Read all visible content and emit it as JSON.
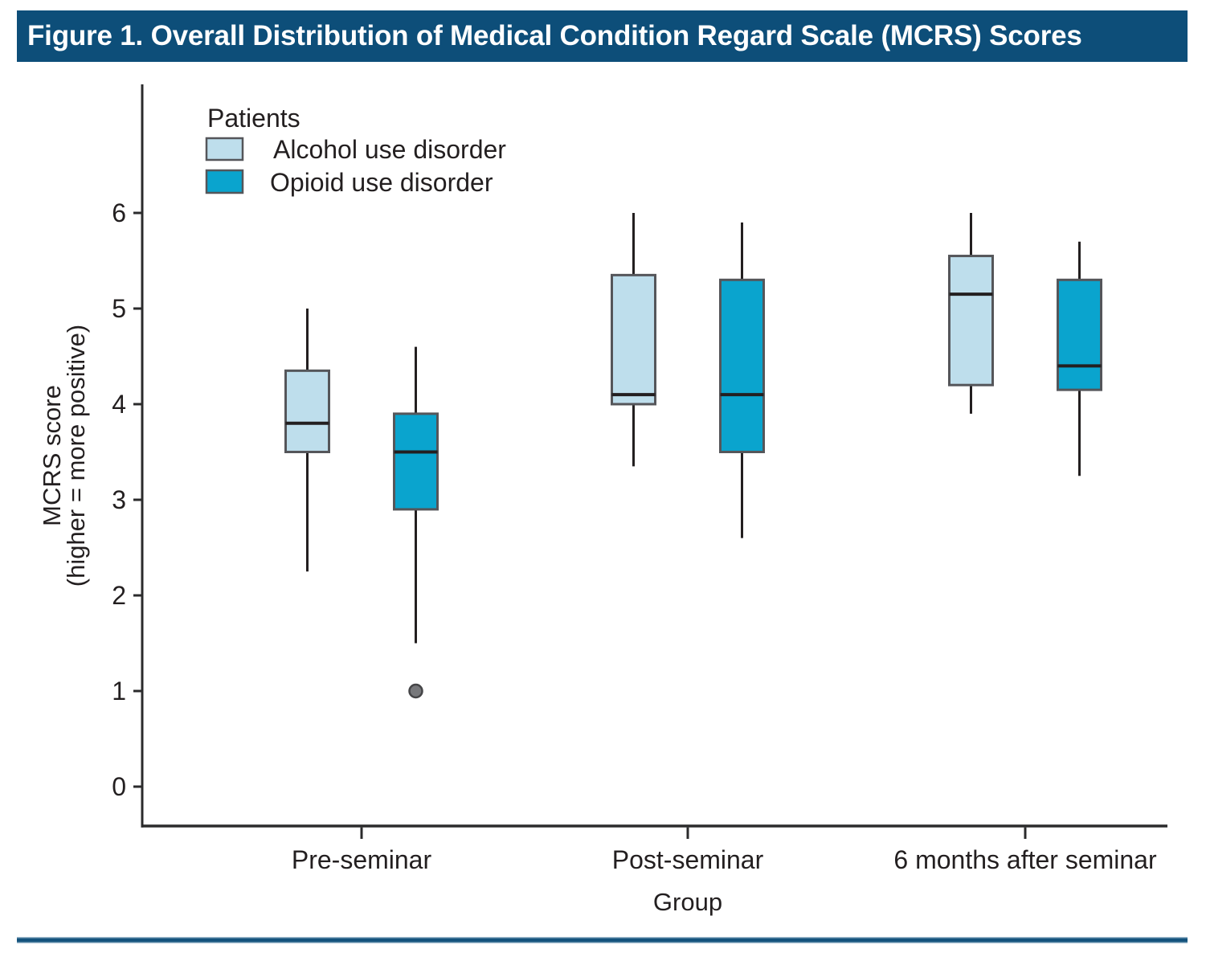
{
  "figure": {
    "title": "Figure 1. Overall Distribution of Medical Condition Regard Scale (MCRS) Scores"
  },
  "colors": {
    "title_bar_bg": "#0D4E79",
    "title_text": "#FFFFFF",
    "rule_core": "#14537D",
    "rule_edge": "#9DB8CC",
    "axis": "#2B2B2C",
    "text": "#231F20",
    "box_border": "#55565A",
    "median_line": "#231F20",
    "whisker": "#231F20",
    "outlier_fill": "#77787B",
    "outlier_stroke": "#454547"
  },
  "chart_data": {
    "type": "boxplot",
    "title": "Figure 1. Overall Distribution of Medical Condition Regard Scale (MCRS) Scores",
    "xlabel": "Group",
    "ylabel_line1": "MCRS score",
    "ylabel_line2": "(higher = more positive)",
    "categories": [
      "Pre-seminar",
      "Post-seminar",
      "6 months after seminar"
    ],
    "y_ticks": [
      0,
      1,
      2,
      3,
      4,
      5,
      6
    ],
    "ylim": [
      0,
      6.6
    ],
    "grid": false,
    "legend_title": "Patients",
    "legend_position": "top-left",
    "series": [
      {
        "name": "Alcohol use disorder",
        "color": "#BEDEEC",
        "boxes": [
          {
            "category": "Pre-seminar",
            "whisker_low": 2.25,
            "q1": 3.5,
            "median": 3.8,
            "q3": 4.35,
            "whisker_high": 5.0,
            "outliers": []
          },
          {
            "category": "Post-seminar",
            "whisker_low": 3.35,
            "q1": 4.0,
            "median": 4.1,
            "q3": 5.35,
            "whisker_high": 6.0,
            "outliers": []
          },
          {
            "category": "6 months after seminar",
            "whisker_low": 3.9,
            "q1": 4.2,
            "median": 5.15,
            "q3": 5.55,
            "whisker_high": 6.0,
            "outliers": []
          }
        ]
      },
      {
        "name": "Opioid use disorder",
        "color": "#0AA4CE",
        "boxes": [
          {
            "category": "Pre-seminar",
            "whisker_low": 1.5,
            "q1": 2.9,
            "median": 3.5,
            "q3": 3.9,
            "whisker_high": 4.6,
            "outliers": [
              1.0
            ]
          },
          {
            "category": "Post-seminar",
            "whisker_low": 2.6,
            "q1": 3.5,
            "median": 4.1,
            "q3": 5.3,
            "whisker_high": 5.9,
            "outliers": []
          },
          {
            "category": "6 months after seminar",
            "whisker_low": 3.25,
            "q1": 4.15,
            "median": 4.4,
            "q3": 5.3,
            "whisker_high": 5.7,
            "outliers": []
          }
        ]
      }
    ]
  }
}
